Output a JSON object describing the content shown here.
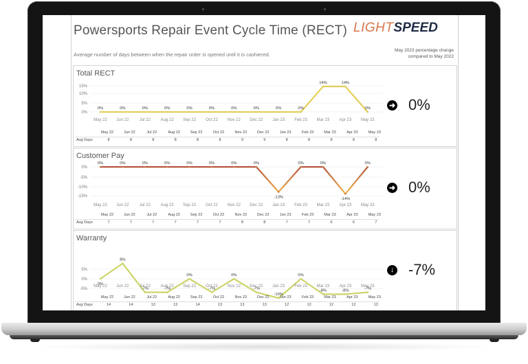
{
  "header": {
    "title": "Powersports Repair Event Cycle Time (RECT)",
    "logo_light": "LIGHT",
    "logo_speed": "SPEED",
    "subtitle": "Average number of days between when the repair order is opened until it is cashiered.",
    "note_line1": "May 2023 percentage change",
    "note_line2": "compared to May 2022"
  },
  "months": [
    "May 22",
    "Jun 22",
    "Jul 22",
    "Aug 22",
    "Sep 22",
    "Oct 22",
    "Nov 22",
    "Dec 22",
    "Jan 23",
    "Feb 23",
    "Mar 23",
    "Apr 23",
    "May 23"
  ],
  "avg_days_label": "Avg Days",
  "colors": {
    "yellow_line": "#e3cf5a",
    "warranty_line": "#cdd46a",
    "customer_top": "#b5553f",
    "customer_bottom": "#f0b44a",
    "kpi_icon": "#000000"
  },
  "panels": [
    {
      "title": "Total RECT",
      "kpi_icon": "arrow-right",
      "kpi_glyph": "➜",
      "kpi_value": "0%",
      "avg_days": [
        "8",
        "8",
        "8",
        "8",
        "8",
        "8",
        "9",
        "9",
        "8",
        "8",
        "8",
        "8",
        "8"
      ]
    },
    {
      "title": "Customer Pay",
      "kpi_icon": "arrow-right",
      "kpi_glyph": "➜",
      "kpi_value": "0%",
      "avg_days": [
        "7",
        "7",
        "7",
        "7",
        "7",
        "7",
        "8",
        "8",
        "7",
        "7",
        "6",
        "6",
        "7"
      ]
    },
    {
      "title": "Warranty",
      "kpi_icon": "arrow-down",
      "kpi_glyph": "↓",
      "kpi_value": "-7%",
      "avg_days": [
        "14",
        "14",
        "13",
        "13",
        "14",
        "13",
        "13",
        "13",
        "12",
        "12",
        "12",
        "12",
        "13"
      ]
    }
  ],
  "chart_data": [
    {
      "type": "line",
      "title": "Total RECT",
      "categories": [
        "May 22",
        "Jun 22",
        "Jul 22",
        "Aug 22",
        "Sep 22",
        "Oct 22",
        "Nov 22",
        "Dec 22",
        "Jan 23",
        "Feb 23",
        "Mar 23",
        "Apr 23",
        "May 23"
      ],
      "values": [
        0,
        0,
        0,
        0,
        0,
        0,
        0,
        0,
        0,
        0,
        14,
        14,
        0
      ],
      "labels": [
        "0%",
        "0%",
        "0%",
        "0%",
        "0%",
        "0%",
        "0%",
        "0%",
        "0%",
        "0%",
        "14%",
        "14%",
        "0%"
      ],
      "yticks": [
        "15%",
        "10%",
        "5%",
        "0%"
      ],
      "ylim": [
        0,
        15
      ],
      "ylabel": "",
      "xlabel": "",
      "grid": true
    },
    {
      "type": "line",
      "title": "Customer Pay",
      "categories": [
        "May 22",
        "Jun 22",
        "Jul 22",
        "Aug 22",
        "Sep 22",
        "Oct 22",
        "Nov 22",
        "Dec 22",
        "Jan 23",
        "Feb 23",
        "Mar 23",
        "Apr 23",
        "May 23"
      ],
      "values": [
        0,
        0,
        0,
        0,
        0,
        0,
        0,
        0,
        -13,
        0,
        0,
        -14,
        0
      ],
      "labels": [
        "0%",
        "0%",
        "0%",
        "0%",
        "0%",
        "0%",
        "0%",
        "0%",
        "-13%",
        "0%",
        "0%",
        "-14%",
        "0%"
      ],
      "yticks": [
        "0%",
        "-5%",
        "-10%",
        "-15%"
      ],
      "ylim": [
        -15,
        0
      ],
      "ylabel": "",
      "xlabel": "",
      "grid": true
    },
    {
      "type": "line",
      "title": "Warranty",
      "categories": [
        "May 22",
        "Jun 22",
        "Jul 22",
        "Aug 22",
        "Sep 22",
        "Oct 22",
        "Nov 22",
        "Dec 22",
        "Jan 23",
        "Feb 23",
        "Mar 23",
        "Apr 23",
        "May 23"
      ],
      "values": [
        0,
        8,
        -7,
        -7,
        0,
        -7,
        0,
        -7,
        -10,
        0,
        -8,
        -8,
        -7
      ],
      "labels": [
        "0%",
        "8%",
        "-7%",
        "-7%",
        "0%",
        "-7%",
        "0%",
        "-7%",
        "-10%",
        "0%",
        "-8%",
        "-8%",
        "-7%"
      ],
      "yticks": [
        "5%",
        "0%",
        "-5%"
      ],
      "ylim": [
        -8,
        8
      ],
      "ylabel": "",
      "xlabel": "",
      "grid": true
    }
  ]
}
